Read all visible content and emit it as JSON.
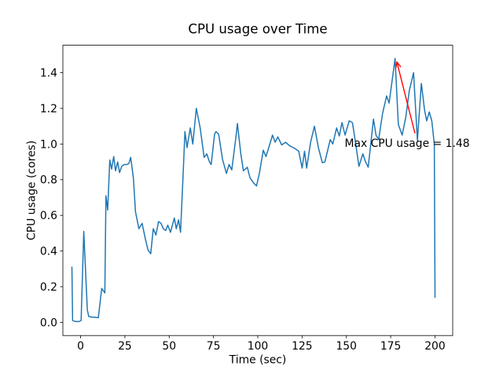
{
  "figure": {
    "background": "#ffffff",
    "axes_edge_color": "#000000"
  },
  "chart_data": {
    "type": "line",
    "title": "CPU usage over Time",
    "xlabel": "Time (sec)",
    "ylabel": "CPU usage (cores)",
    "x_ticks": [
      0,
      25,
      50,
      75,
      100,
      125,
      150,
      175,
      200
    ],
    "y_ticks": [
      0.0,
      0.2,
      0.4,
      0.6,
      0.8,
      1.0,
      1.2,
      1.4
    ],
    "xlim": [
      -10,
      210
    ],
    "ylim": [
      -0.074,
      1.554
    ],
    "grid": false,
    "legend": null,
    "line_color": "#1f77b4",
    "line_width": 1.5,
    "series": [
      {
        "name": "CPU usage",
        "points": [
          [
            -4.9,
            0.31
          ],
          [
            -4.5,
            0.01
          ],
          [
            -3,
            0.005
          ],
          [
            -1,
            0.004
          ],
          [
            0.3,
            0.01
          ],
          [
            1.8,
            0.51
          ],
          [
            3.8,
            0.07
          ],
          [
            4.6,
            0.033
          ],
          [
            6,
            0.03
          ],
          [
            8,
            0.028
          ],
          [
            10,
            0.026
          ],
          [
            11.9,
            0.19
          ],
          [
            13.7,
            0.165
          ],
          [
            14.3,
            0.71
          ],
          [
            15.3,
            0.63
          ],
          [
            16.5,
            0.91
          ],
          [
            17.5,
            0.86
          ],
          [
            18.7,
            0.93
          ],
          [
            19.7,
            0.85
          ],
          [
            20.9,
            0.9
          ],
          [
            22,
            0.84
          ],
          [
            23.2,
            0.875
          ],
          [
            24.5,
            0.885
          ],
          [
            26,
            0.885
          ],
          [
            27.2,
            0.89
          ],
          [
            28.3,
            0.925
          ],
          [
            29.8,
            0.81
          ],
          [
            31,
            0.62
          ],
          [
            32.9,
            0.525
          ],
          [
            34.7,
            0.555
          ],
          [
            36.6,
            0.465
          ],
          [
            38.1,
            0.405
          ],
          [
            39.6,
            0.385
          ],
          [
            41,
            0.525
          ],
          [
            42.5,
            0.49
          ],
          [
            44,
            0.565
          ],
          [
            45.4,
            0.555
          ],
          [
            46.7,
            0.525
          ],
          [
            48,
            0.515
          ],
          [
            49.2,
            0.545
          ],
          [
            50.7,
            0.505
          ],
          [
            52.9,
            0.585
          ],
          [
            54,
            0.525
          ],
          [
            55.3,
            0.575
          ],
          [
            56.4,
            0.505
          ],
          [
            57.8,
            0.82
          ],
          [
            58.9,
            1.07
          ],
          [
            60.1,
            0.98
          ],
          [
            61.9,
            1.09
          ],
          [
            63.3,
            1.0
          ],
          [
            65.3,
            1.2
          ],
          [
            67.5,
            1.09
          ],
          [
            69.7,
            0.925
          ],
          [
            71.2,
            0.945
          ],
          [
            72.7,
            0.9
          ],
          [
            73.7,
            0.885
          ],
          [
            75.6,
            1.055
          ],
          [
            76.4,
            1.07
          ],
          [
            77.9,
            1.055
          ],
          [
            80.1,
            0.915
          ],
          [
            82.3,
            0.835
          ],
          [
            83.8,
            0.885
          ],
          [
            85.3,
            0.855
          ],
          [
            87.5,
            1.025
          ],
          [
            88.5,
            1.115
          ],
          [
            90.4,
            0.945
          ],
          [
            91.9,
            0.85
          ],
          [
            94.1,
            0.87
          ],
          [
            95.6,
            0.81
          ],
          [
            97.8,
            0.78
          ],
          [
            99.3,
            0.765
          ],
          [
            100.9,
            0.835
          ],
          [
            103.1,
            0.965
          ],
          [
            104.6,
            0.93
          ],
          [
            106.5,
            0.99
          ],
          [
            108.3,
            1.05
          ],
          [
            109.8,
            1.01
          ],
          [
            111.3,
            1.04
          ],
          [
            113.5,
            0.995
          ],
          [
            115.7,
            1.01
          ],
          [
            117.9,
            0.99
          ],
          [
            120.9,
            0.975
          ],
          [
            123.1,
            0.96
          ],
          [
            125,
            0.865
          ],
          [
            126.4,
            0.96
          ],
          [
            127.6,
            0.865
          ],
          [
            129.8,
            1.01
          ],
          [
            132,
            1.1
          ],
          [
            134.2,
            0.98
          ],
          [
            136.4,
            0.895
          ],
          [
            137.9,
            0.9
          ],
          [
            140.9,
            1.025
          ],
          [
            142.3,
            1.0
          ],
          [
            144.5,
            1.09
          ],
          [
            146,
            1.045
          ],
          [
            147.5,
            1.12
          ],
          [
            149.3,
            1.05
          ],
          [
            151.6,
            1.13
          ],
          [
            153.4,
            1.12
          ],
          [
            154.9,
            1.025
          ],
          [
            157.1,
            0.875
          ],
          [
            159.3,
            0.945
          ],
          [
            160.8,
            0.9
          ],
          [
            162.3,
            0.87
          ],
          [
            165.3,
            1.14
          ],
          [
            166.7,
            1.05
          ],
          [
            168.2,
            1.025
          ],
          [
            170.4,
            1.17
          ],
          [
            172.7,
            1.27
          ],
          [
            174.1,
            1.23
          ],
          [
            177.5,
            1.48
          ],
          [
            179.3,
            1.11
          ],
          [
            181.5,
            1.05
          ],
          [
            183.5,
            1.15
          ],
          [
            185.5,
            1.3
          ],
          [
            187.9,
            1.4
          ],
          [
            190.1,
            1.02
          ],
          [
            192.3,
            1.34
          ],
          [
            194.1,
            1.19
          ],
          [
            195.3,
            1.13
          ],
          [
            196.8,
            1.18
          ],
          [
            198.2,
            1.13
          ],
          [
            199.6,
            1.0
          ],
          [
            200,
            0.14
          ]
        ]
      }
    ],
    "annotation": {
      "text": "Max CPU usage = 1.48",
      "color": "#ff0000",
      "max_value": 1.48,
      "text_xy": [
        149.0,
        0.985
      ],
      "arrow_tail_xy": [
        188.7,
        1.06
      ],
      "arrow_head_xy": [
        178.5,
        1.46
      ]
    }
  }
}
